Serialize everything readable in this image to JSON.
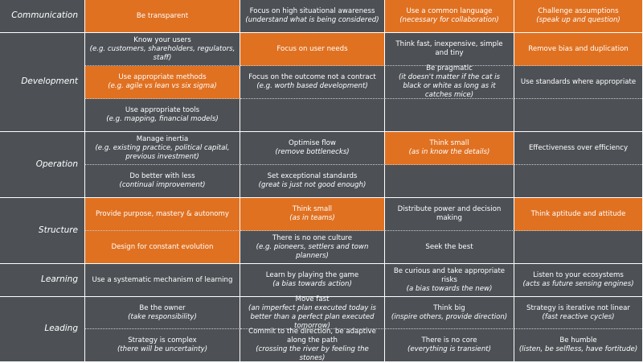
{
  "colors": {
    "dark_cell": "#4d5156",
    "highlight_cell": "#e07121",
    "text": "#ffffff"
  },
  "categories": [
    {
      "name": "Communication",
      "rows": [
        [
          {
            "main": "Be transparent",
            "sub": "",
            "highlight": true
          },
          {
            "main": "Focus on high situational awareness",
            "sub": "(understand what is being considered)",
            "highlight": false
          },
          {
            "main": "Use a common language",
            "sub": "(necessary for collaboration)",
            "highlight": true
          },
          {
            "main": "Challenge assumptions",
            "sub": "(speak up and question)",
            "highlight": true
          }
        ]
      ]
    },
    {
      "name": "Development",
      "rows": [
        [
          {
            "main": "Know your users",
            "sub": "(e.g. customers, shareholders, regulators, staff)",
            "highlight": false
          },
          {
            "main": "Focus on user needs",
            "sub": "",
            "highlight": true
          },
          {
            "main": "Think fast, inexpensive, simple and tiny",
            "sub": "",
            "highlight": false
          },
          {
            "main": "Remove bias and duplication",
            "sub": "",
            "highlight": true
          }
        ],
        [
          {
            "main": "Use appropriate methods",
            "sub": "(e.g. agile vs lean vs six sigma)",
            "highlight": true
          },
          {
            "main": "Focus on the outcome not a contract",
            "sub": "(e.g. worth based development)",
            "highlight": false
          },
          {
            "main": "Be pragmatic",
            "sub": "(it doesn't matter if the cat is black or white as long as it catches mice)",
            "highlight": false
          },
          {
            "main": "Use standards where appropriate",
            "sub": "",
            "highlight": false
          }
        ],
        [
          {
            "main": "Use appropriate tools",
            "sub": "(e.g. mapping, financial models)",
            "highlight": false
          },
          {
            "main": "",
            "sub": "",
            "highlight": false
          },
          {
            "main": "",
            "sub": "",
            "highlight": false
          },
          {
            "main": "",
            "sub": "",
            "highlight": false
          }
        ]
      ]
    },
    {
      "name": "Operation",
      "rows": [
        [
          {
            "main": "Manage inertia",
            "sub": "(e.g. existing practice, political capital, previous investment)",
            "highlight": false
          },
          {
            "main": "Optimise flow",
            "sub": "(remove bottlenecks)",
            "highlight": false
          },
          {
            "main": "Think small",
            "sub": "(as in know the details)",
            "highlight": true
          },
          {
            "main": "Effectiveness over efficiency",
            "sub": "",
            "highlight": false
          }
        ],
        [
          {
            "main": "Do better with less",
            "sub": "(continual improvement)",
            "highlight": false
          },
          {
            "main": "Set exceptional standards",
            "sub": "(great is just not good enough)",
            "highlight": false
          },
          {
            "main": "",
            "sub": "",
            "highlight": false
          },
          {
            "main": "",
            "sub": "",
            "highlight": false
          }
        ]
      ]
    },
    {
      "name": "Structure",
      "rows": [
        [
          {
            "main": "Provide purpose, mastery & autonomy",
            "sub": "",
            "highlight": true
          },
          {
            "main": "Think small",
            "sub": "(as in teams)",
            "highlight": true
          },
          {
            "main": "Distribute power and decision making",
            "sub": "",
            "highlight": false
          },
          {
            "main": "Think aptitude and attitude",
            "sub": "",
            "highlight": true
          }
        ],
        [
          {
            "main": "Design for constant evolution",
            "sub": "",
            "highlight": true
          },
          {
            "main": "There is no one culture",
            "sub": "(e.g. pioneers, settlers and town planners)",
            "highlight": false
          },
          {
            "main": "Seek the best",
            "sub": "",
            "highlight": false
          },
          {
            "main": "",
            "sub": "",
            "highlight": false
          }
        ]
      ]
    },
    {
      "name": "Learning",
      "rows": [
        [
          {
            "main": "Use a systematic mechanism of learning",
            "sub": "",
            "highlight": false
          },
          {
            "main": "Learn by playing the game",
            "sub": "(a bias towards action)",
            "highlight": false
          },
          {
            "main": "Be curious and take appropriate risks",
            "sub": "(a bias towards the new)",
            "highlight": false
          },
          {
            "main": "Listen to your ecosystems",
            "sub": "(acts as future sensing engines)",
            "highlight": false
          }
        ]
      ]
    },
    {
      "name": "Leading",
      "rows": [
        [
          {
            "main": "Be the owner",
            "sub": "(take responsibility)",
            "highlight": false
          },
          {
            "main": "Move fast",
            "sub": "(an imperfect plan executed today is better than a perfect plan executed tomorrow)",
            "highlight": false
          },
          {
            "main": "Think big",
            "sub": "(inspire others, provide direction)",
            "highlight": false
          },
          {
            "main": "Strategy is iterative not linear",
            "sub": "(fast reactive cycles)",
            "highlight": false
          }
        ],
        [
          {
            "main": "Strategy is complex",
            "sub": "(there will be uncertainty)",
            "highlight": false
          },
          {
            "main": "Commit to the direction, be adaptive along the path",
            "sub": "(crossing the river by feeling the stones)",
            "highlight": false
          },
          {
            "main": "There is no core",
            "sub": "(everything is transient)",
            "highlight": false
          },
          {
            "main": "Be humble",
            "sub": "(listen, be selfless, have fortitude)",
            "highlight": false
          }
        ]
      ]
    }
  ]
}
